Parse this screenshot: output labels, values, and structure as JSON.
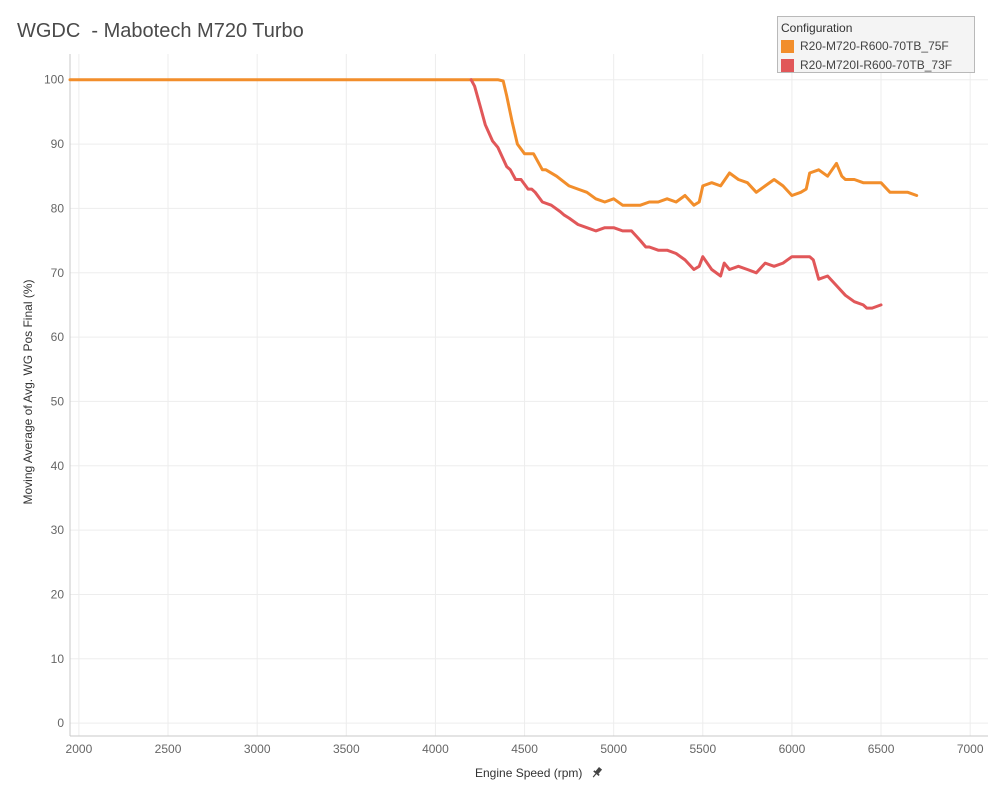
{
  "chart_data": {
    "type": "line",
    "title": "WGDC  - Mabotech M720 Turbo",
    "xlabel": "Engine Speed (rpm)",
    "ylabel": "Moving Average of Avg. WG Pos Final (%)",
    "xlim": [
      1950,
      7100
    ],
    "ylim": [
      -2,
      104
    ],
    "x_ticks": [
      2000,
      2500,
      3000,
      3500,
      4000,
      4500,
      5000,
      5500,
      6000,
      6500,
      7000
    ],
    "y_ticks": [
      0,
      10,
      20,
      30,
      40,
      50,
      60,
      70,
      80,
      90,
      100
    ],
    "grid": true,
    "legend_title": "Configuration",
    "legend_position": "top-right",
    "series": [
      {
        "name": "R20-M720-R600-70TB_75F",
        "color": "#f28e2b",
        "x": [
          1950,
          2500,
          3000,
          3500,
          4000,
          4300,
          4350,
          4380,
          4400,
          4430,
          4460,
          4500,
          4550,
          4600,
          4620,
          4680,
          4750,
          4800,
          4850,
          4900,
          4950,
          5000,
          5050,
          5100,
          5150,
          5200,
          5250,
          5300,
          5350,
          5400,
          5450,
          5480,
          5500,
          5550,
          5600,
          5650,
          5700,
          5750,
          5800,
          5850,
          5900,
          5950,
          6000,
          6050,
          6080,
          6100,
          6150,
          6200,
          6250,
          6280,
          6300,
          6350,
          6400,
          6450,
          6500,
          6550,
          6600,
          6650,
          6700
        ],
        "y": [
          100,
          100,
          100,
          100,
          100,
          100,
          100,
          99.8,
          97.5,
          93.5,
          90,
          88.5,
          88.5,
          86,
          86,
          85,
          83.5,
          83,
          82.5,
          81.5,
          81,
          81.5,
          80.5,
          80.5,
          80.5,
          81,
          81,
          81.5,
          81,
          82,
          80.5,
          81,
          83.5,
          84,
          83.5,
          85.5,
          84.5,
          84,
          82.5,
          83.5,
          84.5,
          83.5,
          82,
          82.5,
          83,
          85.5,
          86,
          85,
          87,
          85,
          84.5,
          84.5,
          84,
          84,
          84,
          82.5,
          82.5,
          82.5,
          82
        ]
      },
      {
        "name": "R20-M720I-R600-70TB_73F",
        "color": "#e15759",
        "x": [
          4200,
          4220,
          4250,
          4280,
          4320,
          4350,
          4400,
          4420,
          4450,
          4480,
          4520,
          4540,
          4560,
          4600,
          4650,
          4700,
          4720,
          4750,
          4800,
          4850,
          4900,
          4950,
          5000,
          5050,
          5100,
          5150,
          5180,
          5200,
          5250,
          5300,
          5350,
          5400,
          5450,
          5480,
          5500,
          5550,
          5600,
          5620,
          5650,
          5700,
          5750,
          5800,
          5850,
          5900,
          5950,
          6000,
          6050,
          6100,
          6120,
          6150,
          6200,
          6250,
          6300,
          6350,
          6400,
          6420,
          6450,
          6500
        ],
        "y": [
          100,
          99,
          96,
          93,
          90.5,
          89.5,
          86.5,
          86,
          84.5,
          84.5,
          83,
          83,
          82.5,
          81,
          80.5,
          79.5,
          79,
          78.5,
          77.5,
          77,
          76.5,
          77,
          77,
          76.5,
          76.5,
          75,
          74,
          74,
          73.5,
          73.5,
          73,
          72,
          70.5,
          71,
          72.5,
          70.5,
          69.5,
          71.5,
          70.5,
          71,
          70.5,
          70,
          71.5,
          71,
          71.5,
          72.5,
          72.5,
          72.5,
          72,
          69,
          69.5,
          68,
          66.5,
          65.5,
          65,
          64.5,
          64.5,
          65
        ]
      }
    ]
  }
}
